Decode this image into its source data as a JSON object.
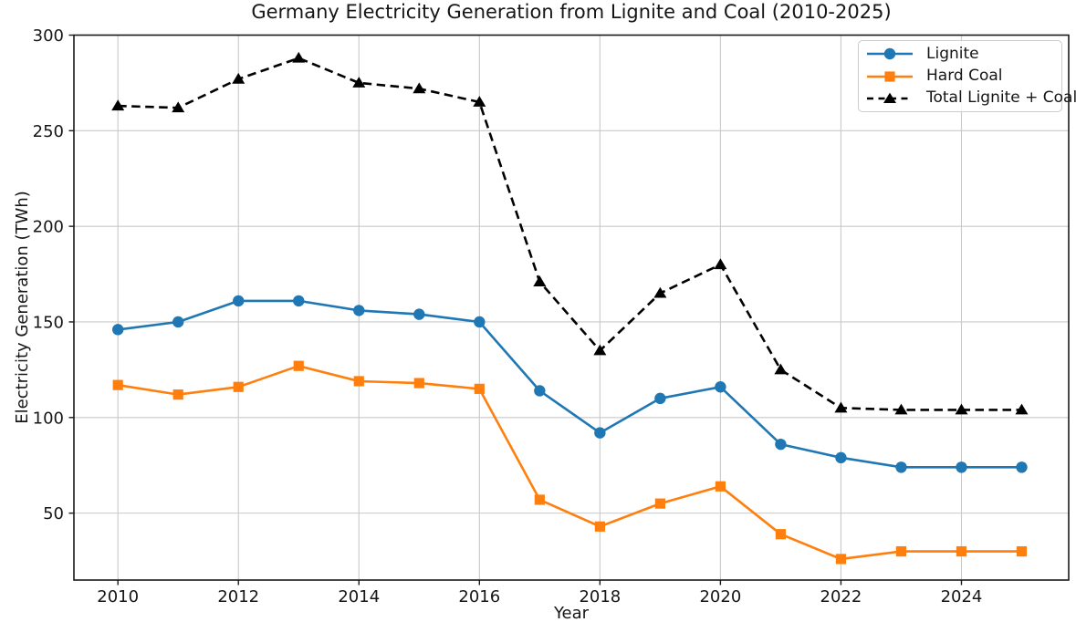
{
  "figure": {
    "title": "Germany Electricity Generation from Lignite and Coal (2010-2025)",
    "xlabel": "Year",
    "ylabel": "Electricity Generation (TWh)"
  },
  "chart_data": {
    "type": "line",
    "title": "Germany Electricity Generation from Lignite and Coal (2010-2025)",
    "xlabel": "Year",
    "ylabel": "Electricity Generation (TWh)",
    "x": [
      2010,
      2011,
      2012,
      2013,
      2014,
      2015,
      2016,
      2017,
      2018,
      2019,
      2020,
      2021,
      2022,
      2023,
      2024,
      2025
    ],
    "series": [
      {
        "name": "Lignite",
        "color": "#1f77b4",
        "marker": "circle",
        "linestyle": "solid",
        "values": [
          146,
          150,
          161,
          161,
          156,
          154,
          150,
          114,
          92,
          110,
          116,
          86,
          79,
          74,
          74,
          74
        ]
      },
      {
        "name": "Hard Coal",
        "color": "#ff7f0e",
        "marker": "square",
        "linestyle": "solid",
        "values": [
          117,
          112,
          116,
          127,
          119,
          118,
          115,
          57,
          43,
          55,
          64,
          39,
          26,
          30,
          30,
          30
        ]
      },
      {
        "name": "Total Lignite + Coal",
        "color": "#000000",
        "marker": "triangle",
        "linestyle": "dashed",
        "values": [
          263,
          262,
          277,
          288,
          275,
          272,
          265,
          171,
          135,
          165,
          180,
          125,
          105,
          104,
          104,
          104
        ]
      }
    ],
    "xticks": [
      2010,
      2012,
      2014,
      2016,
      2018,
      2020,
      2022,
      2024
    ],
    "yticks": [
      50,
      100,
      150,
      200,
      250,
      300
    ],
    "xlim": [
      2009.27,
      2025.78
    ],
    "ylim": [
      15,
      300
    ],
    "grid": true,
    "legend_position": "upper right",
    "grid_color": "#c9c9c9",
    "spine_color": "#1a1a1a"
  }
}
